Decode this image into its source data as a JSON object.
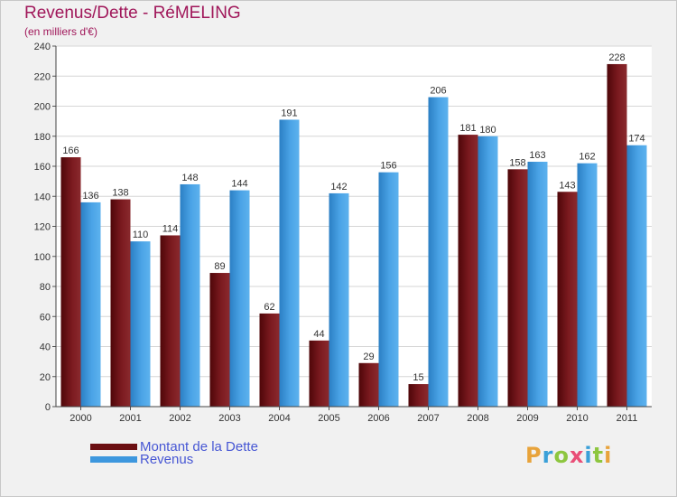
{
  "header": {
    "title": "Revenus/Dette - RéMELING",
    "subtitle": "(en milliers d'€)"
  },
  "legend": [
    {
      "label": "Montant de la Dette",
      "color": "#6b0f12"
    },
    {
      "label": "Revenus",
      "color": "#3d97de"
    }
  ],
  "logo": {
    "letters": [
      "P",
      "r",
      "o",
      "x",
      "i",
      "t",
      "i"
    ],
    "colors": [
      "#e8a33b",
      "#3aa0d8",
      "#8dc63f",
      "#e94e77",
      "#3aa0d8",
      "#8dc63f",
      "#e8a33b"
    ]
  },
  "chart_data": {
    "type": "bar",
    "categories": [
      "2000",
      "2001",
      "2002",
      "2003",
      "2004",
      "2005",
      "2006",
      "2007",
      "2008",
      "2009",
      "2010",
      "2011"
    ],
    "series": [
      {
        "name": "Montant de la Dette",
        "color": "#6b0f12",
        "values": [
          166,
          138,
          114,
          89,
          62,
          44,
          29,
          15,
          181,
          158,
          143,
          228
        ]
      },
      {
        "name": "Revenus",
        "color": "#3d97de",
        "values": [
          136,
          110,
          148,
          144,
          191,
          142,
          156,
          206,
          180,
          163,
          162,
          174
        ]
      }
    ],
    "ylim": [
      0,
      240
    ],
    "yticks": [
      0,
      20,
      40,
      60,
      80,
      100,
      120,
      140,
      160,
      180,
      200,
      220,
      240
    ],
    "grid": true,
    "legend": "bottom-left"
  }
}
